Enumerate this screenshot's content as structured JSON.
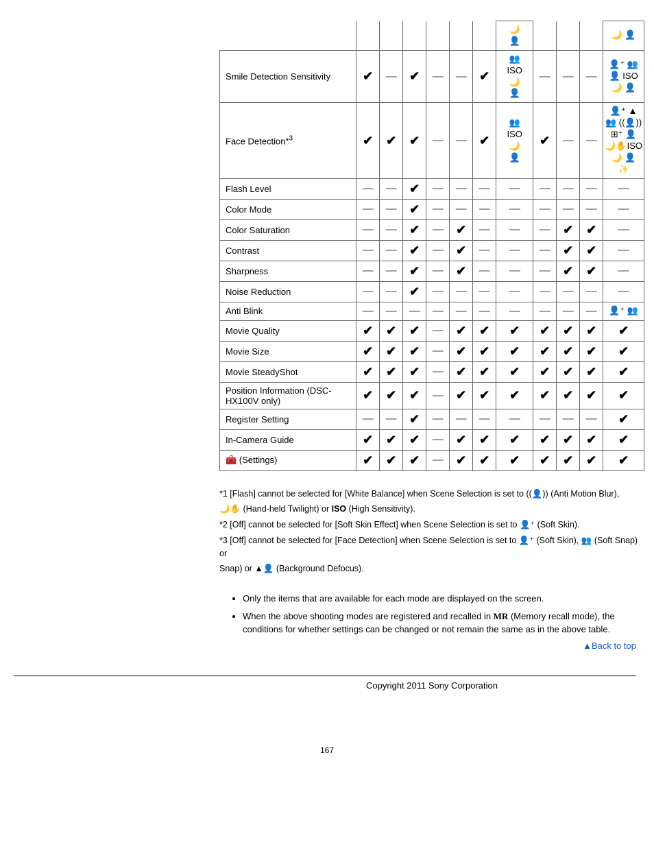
{
  "table": {
    "col_count": 12,
    "rows": [
      {
        "label": "",
        "cells": [
          "",
          "",
          "",
          "",
          "",
          "",
          {
            "icons": [
              "🌙",
              "👤"
            ]
          },
          "",
          "",
          "",
          {
            "icons": [
              "🌙 👤"
            ]
          }
        ],
        "hide_left_border": true
      },
      {
        "label": "Smile Detection Sensitivity",
        "cells": [
          "check",
          "dash",
          "check",
          "dash",
          "dash",
          "check",
          {
            "icons": [
              "👥",
              "ISO",
              "🌙",
              "👤"
            ]
          },
          "dash",
          "dash",
          "dash",
          {
            "icons": [
              "👤⁺ 👥",
              "👤 ISO",
              "🌙 👤"
            ]
          }
        ]
      },
      {
        "label": "Face Detection*³",
        "cells": [
          "check",
          "check",
          "check",
          "dash",
          "dash",
          "check",
          {
            "icons": [
              "👥",
              "ISO",
              "🌙",
              "👤"
            ]
          },
          "check",
          "dash",
          "dash",
          {
            "icons": [
              "👤⁺ ▲",
              "👥 ((👤))",
              "⊞⁺ 👤",
              "🌙✋ISO",
              "🌙 👤",
              "✨"
            ]
          }
        ]
      },
      {
        "label": "Flash Level",
        "cells": [
          "dash",
          "dash",
          "check",
          "dash",
          "dash",
          "dash",
          "dash",
          "dash",
          "dash",
          "dash",
          "dash"
        ]
      },
      {
        "label": "Color Mode",
        "cells": [
          "dash",
          "dash",
          "check",
          "dash",
          "dash",
          "dash",
          "dash",
          "dash",
          "dash",
          "dash",
          "dash"
        ]
      },
      {
        "label": "Color Saturation",
        "cells": [
          "dash",
          "dash",
          "check",
          "dash",
          "check",
          "dash",
          "dash",
          "dash",
          "check",
          "check",
          "dash"
        ]
      },
      {
        "label": "Contrast",
        "cells": [
          "dash",
          "dash",
          "check",
          "dash",
          "check",
          "dash",
          "dash",
          "dash",
          "check",
          "check",
          "dash"
        ]
      },
      {
        "label": "Sharpness",
        "cells": [
          "dash",
          "dash",
          "check",
          "dash",
          "check",
          "dash",
          "dash",
          "dash",
          "check",
          "check",
          "dash"
        ]
      },
      {
        "label": "Noise Reduction",
        "cells": [
          "dash",
          "dash",
          "check",
          "dash",
          "dash",
          "dash",
          "dash",
          "dash",
          "dash",
          "dash",
          "dash"
        ]
      },
      {
        "label": "Anti Blink",
        "cells": [
          "dash",
          "dash",
          "dash",
          "dash",
          "dash",
          "dash",
          "dash",
          "dash",
          "dash",
          "dash",
          {
            "icons": [
              "👤⁺ 👥"
            ]
          }
        ]
      },
      {
        "label": "Movie Quality",
        "cells": [
          "check",
          "check",
          "check",
          "dash",
          "check",
          "check",
          "check",
          "check",
          "check",
          "check",
          "check"
        ]
      },
      {
        "label": "Movie Size",
        "cells": [
          "check",
          "check",
          "check",
          "dash",
          "check",
          "check",
          "check",
          "check",
          "check",
          "check",
          "check"
        ]
      },
      {
        "label": "Movie SteadyShot",
        "cells": [
          "check",
          "check",
          "check",
          "dash",
          "check",
          "check",
          "check",
          "check",
          "check",
          "check",
          "check"
        ]
      },
      {
        "label": "Position Information (DSC-HX100V only)",
        "cells": [
          "check",
          "check",
          "check",
          "dash",
          "check",
          "check",
          "check",
          "check",
          "check",
          "check",
          "check"
        ]
      },
      {
        "label": "Register Setting",
        "cells": [
          "dash",
          "dash",
          "check",
          "dash",
          "dash",
          "dash",
          "dash",
          "dash",
          "dash",
          "dash",
          "check"
        ]
      },
      {
        "label": "In-Camera Guide",
        "cells": [
          "check",
          "check",
          "check",
          "dash",
          "check",
          "check",
          "check",
          "check",
          "check",
          "check",
          "check"
        ]
      },
      {
        "label_prefix_icon": "🧰",
        "label": " (Settings)",
        "cells": [
          "check",
          "check",
          "check",
          "dash",
          "check",
          "check",
          "check",
          "check",
          "check",
          "check",
          "check"
        ]
      }
    ]
  },
  "footnotes": {
    "f1a": "*1 [Flash] cannot be selected for [White Balance] when Scene Selection is set to ",
    "f1b": " (Anti Motion Blur), ",
    "f1c": " (Hand-held Twilight) or ",
    "f1d": " (High Sensitivity).",
    "f2a": "*2 [Off] cannot be selected for [Soft Skin Effect] when Scene Selection is set to ",
    "f2b": " (Soft Skin).",
    "f3a": "*3 [Off] cannot be selected for [Face Detection] when Scene Selection is set to ",
    "f3b": " (Soft Skin), ",
    "f3c": " (Soft Snap) or ",
    "f3d": " (Background Defocus).",
    "icon_anti_motion": "((👤))",
    "icon_handheld": "🌙✋",
    "icon_iso": "ISO",
    "icon_softskin": "👤⁺",
    "icon_softsnap": "👥",
    "icon_bgdefocus": "▲👤"
  },
  "notes": {
    "n1": "Only the items that are available for each mode are displayed on the screen.",
    "n2a": "When the above shooting modes are registered and recalled in ",
    "n2_icon": "MR",
    "n2b": " (Memory recall mode), the conditions for whether settings can be changed or not remain the same as in the above table."
  },
  "backtop": "Back to top",
  "copyright": "Copyright 2011 Sony Corporation",
  "pagenum": "167"
}
